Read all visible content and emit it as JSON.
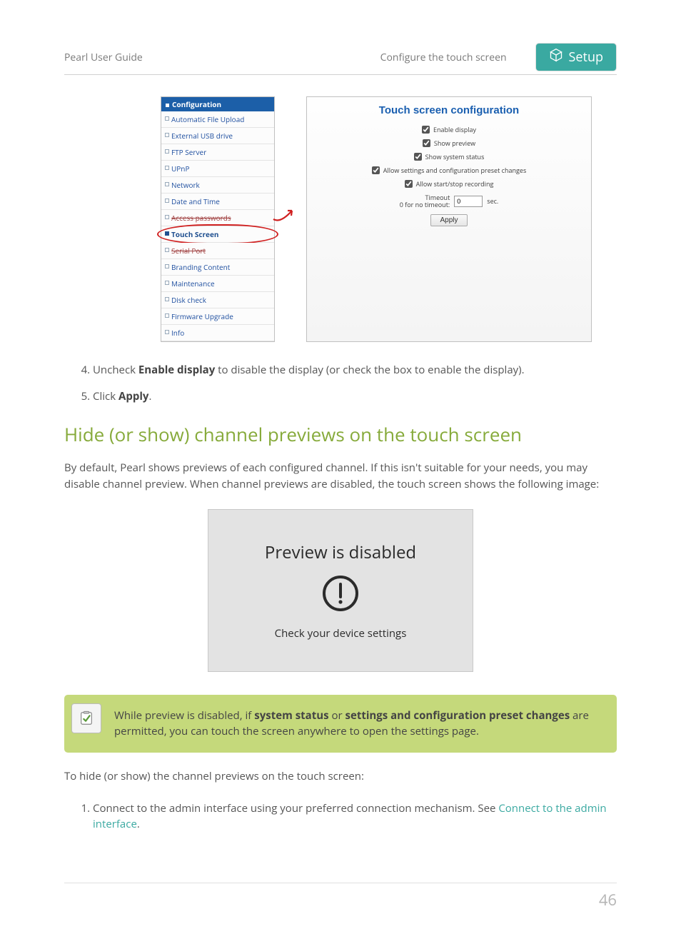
{
  "header": {
    "left": "Pearl User Guide",
    "center": "Configure the touch screen",
    "badge": "Setup"
  },
  "sidebar": {
    "title": "Configuration",
    "items": [
      {
        "label": "Automatic File Upload"
      },
      {
        "label": "External USB drive"
      },
      {
        "label": "FTP Server"
      },
      {
        "label": "UPnP"
      },
      {
        "label": "Network"
      },
      {
        "label": "Date and Time"
      },
      {
        "label": "Access passwords",
        "struck": true
      },
      {
        "label": "Touch Screen",
        "highlighted": true
      },
      {
        "label": "Serial Port",
        "struck": true
      },
      {
        "label": "Branding Content"
      },
      {
        "label": "Maintenance"
      },
      {
        "label": "Disk check"
      },
      {
        "label": "Firmware Upgrade"
      },
      {
        "label": "Info"
      }
    ]
  },
  "config_panel": {
    "title": "Touch screen configuration",
    "checks": [
      {
        "label": "Enable display",
        "checked": true
      },
      {
        "label": "Show preview",
        "checked": true
      },
      {
        "label": "Show system status",
        "checked": true
      },
      {
        "label": "Allow settings and configuration preset changes",
        "checked": true
      },
      {
        "label": "Allow start/stop recording",
        "checked": true
      }
    ],
    "timeout_label_line1": "Timeout",
    "timeout_label_line2": "0 for no timeout:",
    "timeout_value": "0",
    "timeout_unit": "sec.",
    "apply": "Apply"
  },
  "steps_a": {
    "start": 4,
    "items": [
      {
        "pre": "Uncheck ",
        "strong": "Enable display",
        "post": " to disable the display (or check the box to enable the display)."
      },
      {
        "pre": "Click ",
        "strong": "Apply",
        "post": "."
      }
    ]
  },
  "section_heading": "Hide (or show) channel previews on the touch screen",
  "intro_para": "By default, Pearl shows previews of each configured channel. If this isn't suitable for your needs, you may disable channel preview. When channel previews are disabled, the touch screen shows the following image:",
  "preview_box": {
    "title": "Preview is disabled",
    "subtitle": "Check your device settings",
    "bg": "#e3e3e3",
    "text_color": "#2b2b2b"
  },
  "note": {
    "pre": "While preview is disabled, if ",
    "strong1": "system status",
    "mid": " or ",
    "strong2": "settings and configuration preset changes",
    "post": " are permitted, you can touch the screen anywhere to open the settings page."
  },
  "lead_out": "To hide (or show) the channel previews on the touch screen:",
  "steps_b": {
    "start": 1,
    "item_pre": "Connect to the admin interface using your preferred connection mechanism. See ",
    "link": "Connect to the admin interface",
    "item_post": "."
  },
  "page_number": "46",
  "colors": {
    "accent_green": "#86aa3a",
    "badge_teal": "#3aa9a1",
    "link_teal": "#3aa9a1",
    "note_bg": "#c5d97b",
    "sidebar_header_bg": "#1c5fa8",
    "highlight_red": "#d02020"
  }
}
